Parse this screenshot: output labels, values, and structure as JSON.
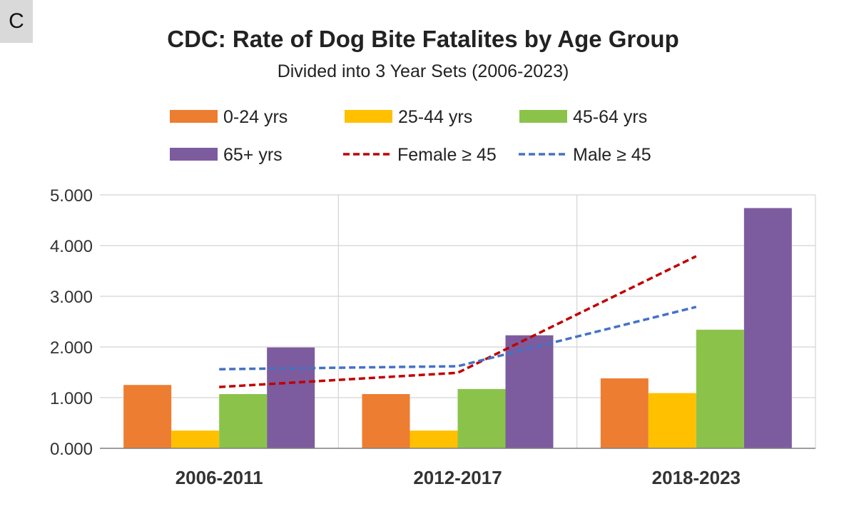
{
  "panel_label": "C",
  "colors": {
    "0-24 yrs": "#ED7D31",
    "25-44 yrs": "#FFC000",
    "45-64 yrs": "#8BC34A",
    "65+ yrs": "#7C5C9E",
    "Female ≥ 45": "#C00000",
    "Male ≥ 45": "#4472C4",
    "grid": "#d4d4d4",
    "axis": "#7f7f7f"
  },
  "chart_data": {
    "type": "bar",
    "title": "CDC: Rate of Dog Bite Fatalites by Age Group",
    "subtitle": "Divided into 3 Year Sets (2006-2023)",
    "categories": [
      "2006-2011",
      "2012-2017",
      "2018-2023"
    ],
    "series": [
      {
        "name": "0-24 yrs",
        "type": "bar",
        "values": [
          1.25,
          1.07,
          1.38
        ]
      },
      {
        "name": "25-44 yrs",
        "type": "bar",
        "values": [
          0.35,
          0.35,
          1.09
        ]
      },
      {
        "name": "45-64 yrs",
        "type": "bar",
        "values": [
          1.07,
          1.17,
          2.34
        ]
      },
      {
        "name": "65+ yrs",
        "type": "bar",
        "values": [
          1.99,
          2.23,
          4.74
        ]
      },
      {
        "name": "Female ≥ 45",
        "type": "line",
        "style": "dashed",
        "values": [
          1.21,
          1.49,
          3.79
        ]
      },
      {
        "name": "Male ≥ 45",
        "type": "line",
        "style": "dashed",
        "values": [
          1.56,
          1.62,
          2.79
        ]
      }
    ],
    "ylim": [
      0,
      5
    ],
    "yticks": [
      "0.000",
      "1.000",
      "2.000",
      "3.000",
      "4.000",
      "5.000"
    ],
    "xlabel": "",
    "ylabel": "",
    "grid": true,
    "legend_position": "top"
  }
}
